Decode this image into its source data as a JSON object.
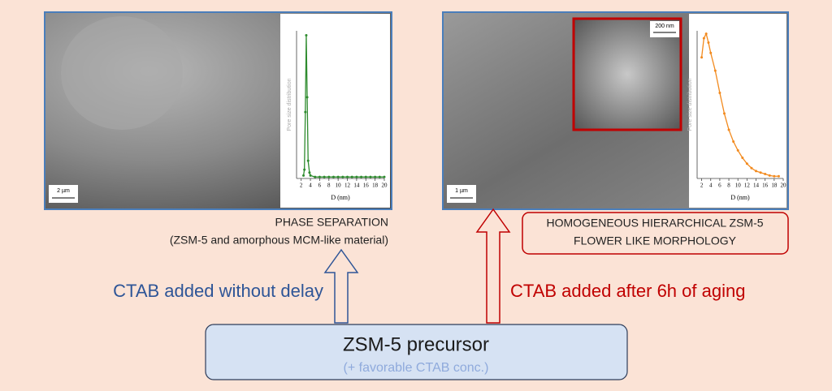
{
  "left_panel": {
    "scale_bar": "2 µm",
    "chart": {
      "type": "line",
      "ylabel": "Pore size distribution",
      "xlabel": "D (nm)",
      "x": [
        2.5,
        2.7,
        2.9,
        3.1,
        3.3,
        3.5,
        3.8,
        4,
        5,
        6,
        7,
        8,
        9,
        10,
        11,
        12,
        13,
        14,
        15,
        16,
        17,
        18,
        19,
        20
      ],
      "values": [
        0.02,
        0.06,
        0.45,
        0.97,
        0.55,
        0.12,
        0.04,
        0.02,
        0.01,
        0.01,
        0.01,
        0.01,
        0.01,
        0.01,
        0.01,
        0.01,
        0.01,
        0.01,
        0.01,
        0.01,
        0.01,
        0.01,
        0.01,
        0.01
      ],
      "color": "#2e8b2e",
      "xlim": [
        1,
        20
      ],
      "ylim": [
        0,
        1
      ],
      "xticks": [
        2,
        4,
        6,
        8,
        10,
        12,
        14,
        16,
        18,
        20
      ]
    },
    "caption": [
      "PHASE SEPARATION",
      "(ZSM-5 and amorphous MCM-like material)"
    ]
  },
  "right_panel": {
    "scale_bar": "1 µm",
    "inset_scale_bar": "200 nm",
    "chart": {
      "type": "line",
      "ylabel": "Pore size distribution",
      "xlabel": "D (nm)",
      "x": [
        2,
        2.5,
        3,
        3.5,
        4,
        5,
        6,
        7,
        8,
        9,
        10,
        11,
        12,
        13,
        14,
        15,
        16,
        17,
        18,
        19
      ],
      "values": [
        0.82,
        0.95,
        0.98,
        0.92,
        0.85,
        0.73,
        0.58,
        0.44,
        0.33,
        0.25,
        0.19,
        0.14,
        0.1,
        0.07,
        0.05,
        0.04,
        0.03,
        0.02,
        0.015,
        0.015
      ],
      "color": "#f28a1e",
      "xlim": [
        1,
        20
      ],
      "ylim": [
        0,
        1
      ],
      "xticks": [
        2,
        4,
        6,
        8,
        10,
        12,
        14,
        16,
        18,
        20
      ]
    },
    "caption": [
      "HOMOGENEOUS HIERARCHICAL ZSM-5",
      "FLOWER LIKE MORPHOLOGY"
    ]
  },
  "arrows": {
    "left_label": "CTAB added without delay",
    "right_label": "CTAB added after 6h of aging"
  },
  "precursor": {
    "title": "ZSM-5 precursor",
    "subtitle": "(+ favorable CTAB conc.)"
  }
}
